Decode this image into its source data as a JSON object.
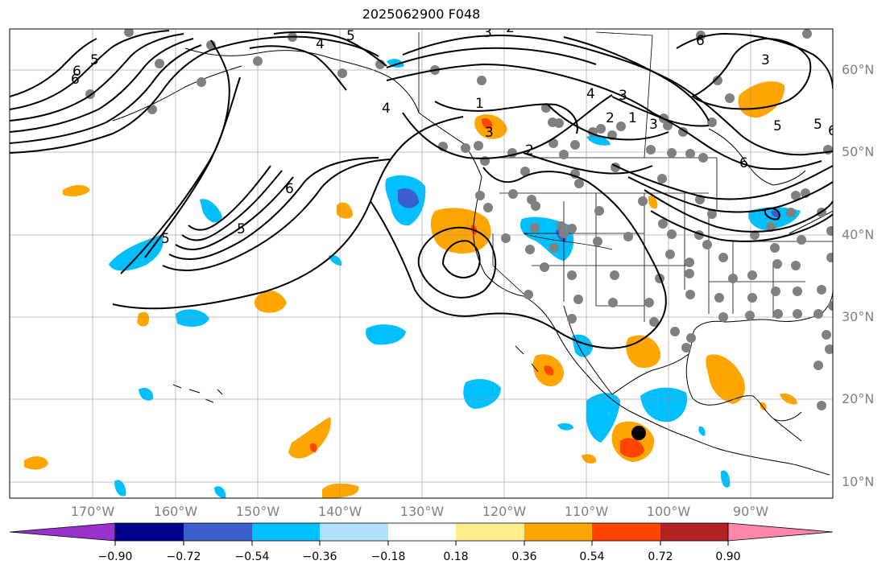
{
  "title": "2025062900 F048",
  "map": {
    "projection": "PlateCarree",
    "lon_range": [
      -180,
      -80
    ],
    "lat_range": [
      8,
      65
    ],
    "lat_labels": [
      "60°N",
      "50°N",
      "40°N",
      "30°N",
      "20°N",
      "10°N"
    ],
    "lon_labels": [
      "170°W",
      "160°W",
      "150°W",
      "140°W",
      "130°W",
      "120°W",
      "110°W",
      "100°W",
      "90°W"
    ],
    "contour_labels": [
      "6",
      "5",
      "6",
      "5",
      "4",
      "5",
      "3",
      "2",
      "1",
      "6",
      "5",
      "4",
      "3",
      "2",
      "1",
      "2",
      "3",
      "5",
      "6",
      "3",
      "4",
      "3",
      "6",
      "5",
      "6"
    ],
    "marker": "black-dot"
  },
  "colorbar": {
    "ticks": [
      "−0.90",
      "−0.72",
      "−0.54",
      "−0.36",
      "−0.18",
      "0.18",
      "0.36",
      "0.54",
      "0.72",
      "0.90"
    ],
    "colors": [
      "#9932cc",
      "#00008b",
      "#3a5fcd",
      "#00bfff",
      "#b0e2ff",
      "#ffffff",
      "#ffec8b",
      "#ffa500",
      "#ff4500",
      "#b22222",
      "#ff88aa"
    ]
  }
}
